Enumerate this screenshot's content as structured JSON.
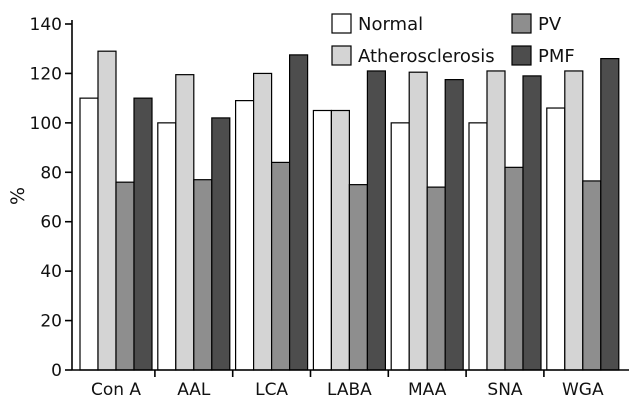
{
  "chart_data": {
    "type": "bar",
    "title": "",
    "xlabel": "",
    "ylabel": "%",
    "ylim": [
      0,
      140
    ],
    "yticks": [
      0,
      20,
      40,
      60,
      80,
      100,
      120,
      140
    ],
    "grid": false,
    "legend_position": "top-right",
    "categories": [
      "Con A",
      "AAL",
      "LCA",
      "LABA",
      "MAA",
      "SNA",
      "WGA"
    ],
    "series": [
      {
        "name": "Normal",
        "color": "#ffffff",
        "values": [
          110,
          100,
          109,
          105,
          100,
          100,
          106
        ]
      },
      {
        "name": "Atherosclerosis",
        "color": "#d4d4d4",
        "values": [
          129,
          119.5,
          120,
          105,
          120.5,
          121,
          121
        ]
      },
      {
        "name": "PV",
        "color": "#8e8e8e",
        "values": [
          76,
          77,
          84,
          75,
          74,
          82,
          76.5
        ]
      },
      {
        "name": "PMF",
        "color": "#4d4d4d",
        "values": [
          110,
          102,
          127.5,
          121,
          117.5,
          119,
          126
        ]
      }
    ]
  }
}
